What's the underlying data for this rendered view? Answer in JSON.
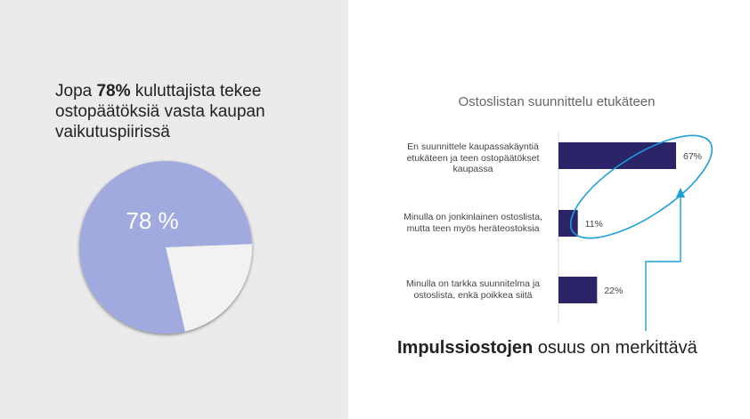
{
  "headline": {
    "prefix": "Jopa ",
    "bold": "78%",
    "suffix": " kuluttajista tekee ostopäätöksiä vasta kaupan vaikutuspiirissä"
  },
  "pie": {
    "label": "78 %",
    "colors": {
      "main": "#a1aadf",
      "rest": "#f2f2f2"
    }
  },
  "chart_data": [
    {
      "type": "pie",
      "slices": [
        {
          "label": "78 %",
          "value": 78
        },
        {
          "label": "",
          "value": 22
        }
      ]
    },
    {
      "type": "bar",
      "orientation": "horizontal",
      "title": "Ostoslistan suunnittelu etukäteen",
      "categories": [
        "En suunnittele kaupassakäyntiä etukäteen ja teen ostopäätökset kaupassa",
        "Minulla on jonkinlainen ostoslista, mutta teen myös heräteostoksia",
        "Minulla on tarkka suunnitelma ja ostoslista, enkä poikkea siitä"
      ],
      "values": [
        67,
        11,
        22
      ],
      "value_labels": [
        "67%",
        "11%",
        "22%"
      ],
      "bar_color": "#2b2468",
      "xlim": [
        0,
        100
      ],
      "grid": false,
      "legend": "none"
    }
  ],
  "annotation_color": "#1a9fd9",
  "caption": {
    "bold": "Impulssiostojen",
    "rest": " osuus on merkittävä"
  }
}
